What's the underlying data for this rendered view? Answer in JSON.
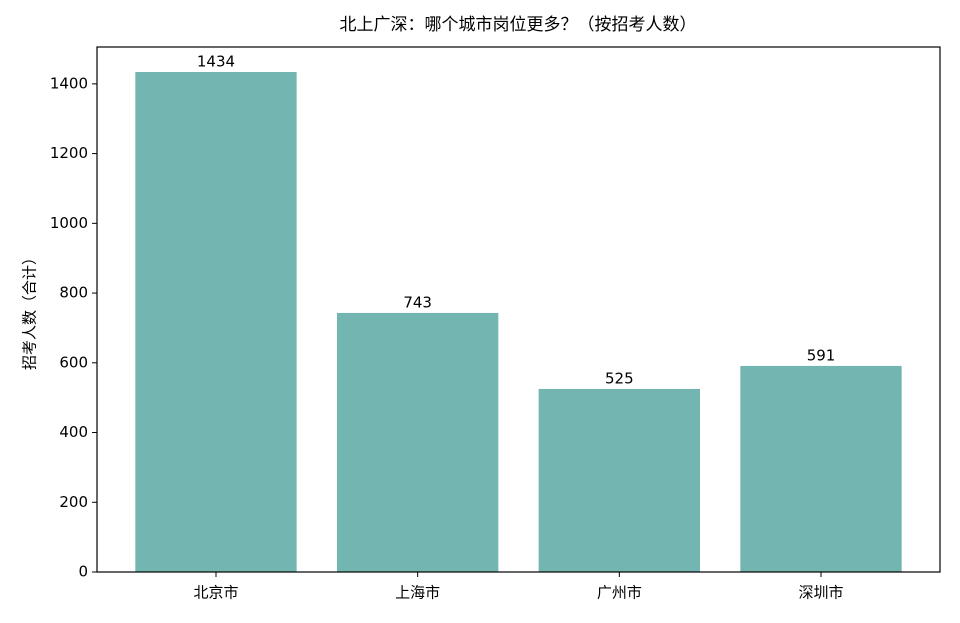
{
  "chart_data": {
    "type": "bar",
    "title": "北上广深：哪个城市岗位更多？（按招考人数）",
    "y_label": "招考人数（合计）",
    "categories": [
      "北京市",
      "上海市",
      "广州市",
      "深圳市"
    ],
    "values": [
      1434,
      743,
      525,
      591
    ],
    "color": "#73b6b1",
    "ylim": [
      0,
      1505.7
    ],
    "yticks": [
      0,
      200,
      400,
      600,
      800,
      1000,
      1200,
      1400
    ],
    "show_value_labels": true
  }
}
